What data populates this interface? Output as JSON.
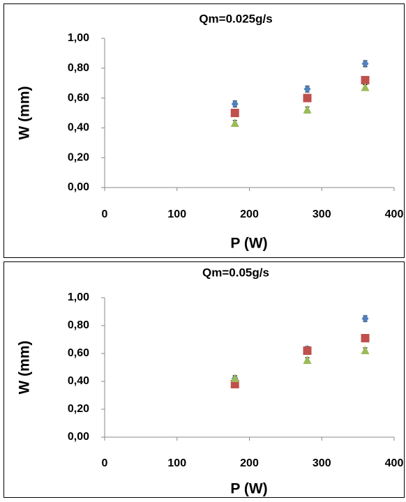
{
  "chart_data": [
    {
      "type": "scatter",
      "title": "Qm=0.025g/s",
      "x_label": "P (W)",
      "y_label": "W (mm)",
      "x": [
        180,
        280,
        360
      ],
      "series": [
        {
          "color": "#4f81bd",
          "marker": "diamond",
          "values": [
            0.56,
            0.66,
            0.83
          ],
          "errors": [
            0.02,
            0.02,
            0.02
          ]
        },
        {
          "color": "#c0504d",
          "marker": "square",
          "values": [
            0.5,
            0.6,
            0.72
          ],
          "errors": [
            0.02,
            0.02,
            0.02
          ]
        },
        {
          "color": "#9bbb59",
          "marker": "triangle",
          "values": [
            0.43,
            0.52,
            0.67
          ],
          "errors": [
            0.02,
            0.02,
            0.02
          ]
        }
      ],
      "xlim": [
        0,
        400
      ],
      "xticks": [
        0,
        100,
        200,
        300,
        400
      ],
      "ylim": [
        0,
        1
      ],
      "yticks": [
        {
          "value": 0,
          "label": "0,00"
        },
        {
          "value": 0.2,
          "label": "0,20"
        },
        {
          "value": 0.4,
          "label": "0,40"
        },
        {
          "value": 0.6,
          "label": "0,60"
        },
        {
          "value": 0.8,
          "label": "0,80"
        },
        {
          "value": 1,
          "label": "1,00"
        }
      ]
    },
    {
      "type": "scatter",
      "title": "Qm=0.05g/s",
      "x_label": "P (W)",
      "y_label": "W (mm)",
      "x": [
        180,
        280,
        360
      ],
      "series": [
        {
          "color": "#4f81bd",
          "marker": "diamond",
          "values": [
            0.42,
            0.63,
            0.85
          ],
          "errors": [
            0.02,
            0.02,
            0.02
          ]
        },
        {
          "color": "#c0504d",
          "marker": "square",
          "values": [
            0.38,
            0.62,
            0.71
          ],
          "errors": [
            0.02,
            0.02,
            0.02
          ]
        },
        {
          "color": "#9bbb59",
          "marker": "triangle",
          "values": [
            0.42,
            0.55,
            0.62
          ],
          "errors": [
            0.02,
            0.02,
            0.02
          ]
        }
      ],
      "xlim": [
        0,
        400
      ],
      "xticks": [
        0,
        100,
        200,
        300,
        400
      ],
      "ylim": [
        0,
        1
      ],
      "yticks": [
        {
          "value": 0,
          "label": "0,00"
        },
        {
          "value": 0.2,
          "label": "0,20"
        },
        {
          "value": 0.4,
          "label": "0,40"
        },
        {
          "value": 0.6,
          "label": "0,60"
        },
        {
          "value": 0.8,
          "label": "0,80"
        },
        {
          "value": 1,
          "label": "1,00"
        }
      ]
    }
  ]
}
